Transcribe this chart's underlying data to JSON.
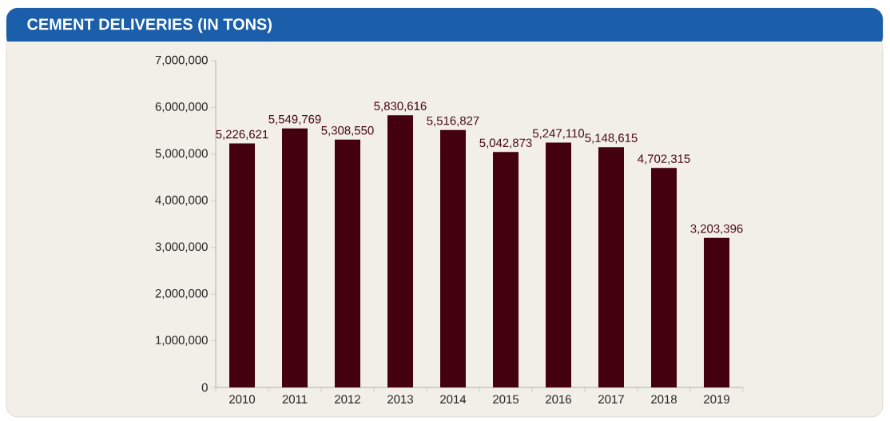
{
  "chart_data": {
    "type": "bar",
    "title": "CEMENT DELIVERIES (IN TONS)",
    "categories": [
      "2010",
      "2011",
      "2012",
      "2013",
      "2014",
      "2015",
      "2016",
      "2017",
      "2018",
      "2019"
    ],
    "values": [
      5226621,
      5549769,
      5308550,
      5830616,
      5516827,
      5042873,
      5247110,
      5148615,
      4702315,
      3203396
    ],
    "value_labels": [
      "5,226,621",
      "5,549,769",
      "5,308,550",
      "5,830,616",
      "5,516,827",
      "5,042,873",
      "5,247,110",
      "5,148,615",
      "4,702,315",
      "3,203,396"
    ],
    "color": "#45000f",
    "ylim": [
      0,
      7000000
    ],
    "yticks": [
      {
        "value": 0,
        "label": "0"
      },
      {
        "value": 1000000,
        "label": "1,000,000"
      },
      {
        "value": 2000000,
        "label": "2,000,000"
      },
      {
        "value": 3000000,
        "label": "3,000,000"
      },
      {
        "value": 4000000,
        "label": "4,000,000"
      },
      {
        "value": 5000000,
        "label": "5,000,000"
      },
      {
        "value": 6000000,
        "label": "6,000,000"
      },
      {
        "value": 7000000,
        "label": "7,000,000"
      }
    ]
  }
}
